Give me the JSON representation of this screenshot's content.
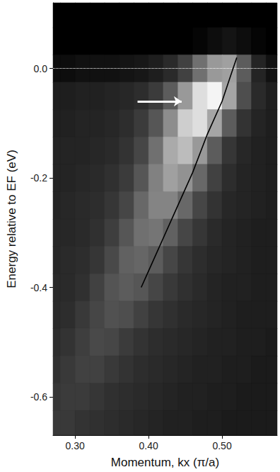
{
  "chart_data": {
    "type": "heatmap",
    "x_label": "Momentum, kx (π/a)",
    "y_label": "Energy relative to EF (eV)",
    "xlim": [
      0.27,
      0.575
    ],
    "ylim": [
      -0.67,
      0.12
    ],
    "xticks": [
      {
        "value": 0.3,
        "label": "0.30"
      },
      {
        "value": 0.4,
        "label": "0.40"
      },
      {
        "value": 0.5,
        "label": "0.50"
      }
    ],
    "yticks": [
      {
        "value": 0,
        "label": "0.0"
      },
      -0.2,
      -0.4,
      -0.6
    ],
    "grid": false,
    "intensity": {
      "range": [
        0,
        100
      ],
      "x": [
        0.27,
        0.29,
        0.31,
        0.33,
        0.35,
        0.37,
        0.39,
        0.41,
        0.43,
        0.45,
        0.47,
        0.49,
        0.51,
        0.53,
        0.55,
        0.57
      ],
      "y": [
        0.1,
        0.05,
        0.0,
        -0.05,
        -0.1,
        -0.15,
        -0.2,
        -0.25,
        -0.3,
        -0.35,
        -0.4,
        -0.45,
        -0.5,
        -0.55,
        -0.6,
        -0.65
      ],
      "values": [
        [
          0,
          0,
          0,
          0,
          0,
          0,
          0,
          0,
          0,
          0,
          0,
          0,
          0,
          0,
          0,
          0
        ],
        [
          0,
          0,
          0,
          0,
          0,
          0,
          0,
          0,
          0,
          0,
          1,
          3,
          5,
          3,
          1,
          0
        ],
        [
          3,
          3,
          4,
          4,
          4,
          5,
          6,
          8,
          12,
          20,
          38,
          55,
          58,
          30,
          10,
          4
        ],
        [
          8,
          8,
          9,
          9,
          10,
          11,
          13,
          18,
          30,
          55,
          85,
          95,
          60,
          25,
          12,
          8
        ],
        [
          9,
          9,
          10,
          10,
          11,
          13,
          18,
          28,
          50,
          78,
          85,
          60,
          30,
          15,
          10,
          8
        ],
        [
          10,
          10,
          10,
          11,
          12,
          15,
          22,
          38,
          62,
          70,
          55,
          30,
          16,
          11,
          9,
          8
        ],
        [
          10,
          10,
          11,
          12,
          14,
          18,
          28,
          45,
          58,
          52,
          35,
          20,
          13,
          10,
          9,
          8
        ],
        [
          10,
          11,
          12,
          13,
          16,
          22,
          35,
          46,
          46,
          35,
          22,
          15,
          11,
          10,
          9,
          8
        ],
        [
          11,
          11,
          12,
          14,
          19,
          28,
          38,
          40,
          32,
          22,
          16,
          12,
          10,
          9,
          8,
          8
        ],
        [
          11,
          12,
          13,
          16,
          23,
          32,
          34,
          30,
          22,
          16,
          13,
          11,
          10,
          9,
          8,
          8
        ],
        [
          12,
          12,
          14,
          20,
          27,
          30,
          28,
          22,
          17,
          14,
          12,
          10,
          9,
          9,
          8,
          8
        ],
        [
          12,
          13,
          17,
          22,
          26,
          25,
          20,
          16,
          14,
          12,
          11,
          10,
          9,
          8,
          8,
          8
        ],
        [
          13,
          15,
          19,
          23,
          22,
          18,
          15,
          13,
          12,
          11,
          10,
          9,
          9,
          8,
          8,
          7
        ],
        [
          14,
          17,
          20,
          20,
          17,
          15,
          13,
          12,
          11,
          10,
          9,
          9,
          8,
          8,
          7,
          7
        ],
        [
          16,
          18,
          18,
          16,
          14,
          13,
          12,
          11,
          10,
          9,
          9,
          8,
          8,
          7,
          7,
          7
        ],
        [
          17,
          17,
          15,
          14,
          13,
          12,
          11,
          10,
          9,
          9,
          8,
          8,
          7,
          7,
          7,
          7
        ]
      ]
    },
    "series": [
      {
        "type": "line",
        "color": "#000000",
        "x": [
          0.39,
          0.4,
          0.42,
          0.44,
          0.46,
          0.48,
          0.5,
          0.51,
          0.52
        ],
        "values": [
          -0.4,
          -0.37,
          -0.31,
          -0.25,
          -0.19,
          -0.12,
          -0.06,
          -0.02,
          0.02
        ]
      }
    ],
    "fermi_level": 0,
    "arrow": {
      "from": [
        0.385,
        -0.06
      ],
      "to": [
        0.445,
        -0.06
      ],
      "color": "#ffffff"
    }
  }
}
